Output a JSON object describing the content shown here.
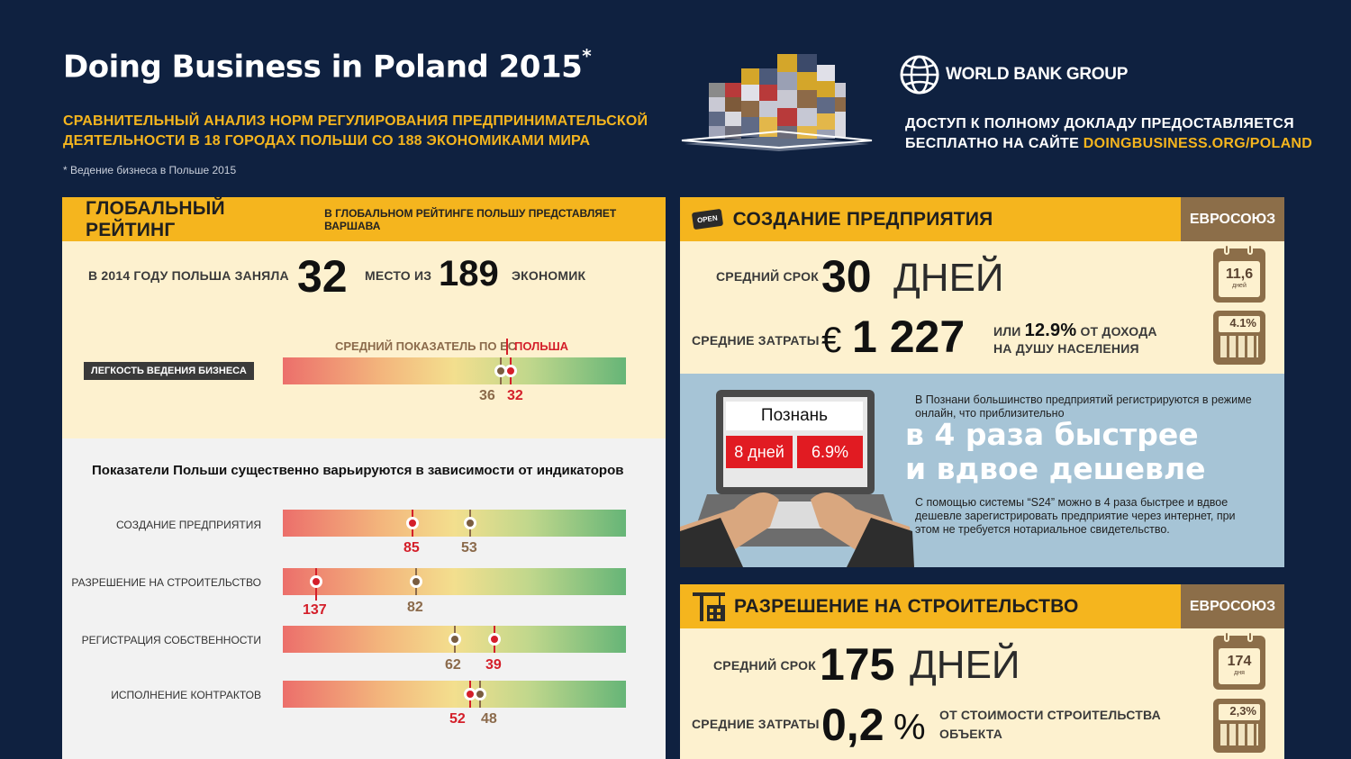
{
  "header": {
    "title": "Doing Business in Poland 2015",
    "title_mark": "*",
    "subtitle_line1": "СРАВНИТЕЛЬНЫЙ АНАЛИЗ НОРМ РЕГУЛИРОВАНИЯ ПРЕДПРИНИМАТЕЛЬСКОЙ",
    "subtitle_line2": "ДЕЯТЕЛЬНОСТИ В 18 ГОРОДАХ ПОЛЬШИ СО 188 ЭКОНОМИКАМИ МИРА",
    "footnote": "* Ведение бизнеса в Польше 2015",
    "brand": "WORLD BANK GROUP",
    "access_line1": "ДОСТУП К ПОЛНОМУ ДОКЛАДУ ПРЕДОСТАВЛЯЕТСЯ",
    "access_line2_prefix": "БЕСПЛАТНО НА САЙТЕ ",
    "access_link": "DOINGBUSINESS.ORG/POLAND"
  },
  "global": {
    "title": "ГЛОБАЛЬНЫЙ РЕЙТИНГ",
    "subtitle": "В ГЛОБАЛЬНОМ РЕЙТИНГЕ ПОЛЬШУ ПРЕДСТАВЛЯЕТ ВАРШАВА",
    "rank_prefix": "В 2014 ГОДУ ПОЛЬША ЗАНЯЛА",
    "rank": "32",
    "rank_mid": "МЕСТО ИЗ",
    "total": "189",
    "rank_suffix": "ЭКОНОМИК",
    "eu_avg_label": "СРЕДНИЙ ПОКАЗАТЕЛЬ ПО ЕС",
    "poland_label": "ПОЛЬША",
    "ease_label": "ЛЕГКОСТЬ ВЕДЕНИЯ БИЗНЕСА",
    "eu_value": "36",
    "poland_value": "32"
  },
  "indicators": {
    "heading": "Показатели Польши существенно варьируются в зависимости от индикаторов",
    "items": [
      {
        "label": "СОЗДАНИЕ ПРЕДПРИЯТИЯ",
        "poland": "85",
        "eu": "53"
      },
      {
        "label": "РАЗРЕШЕНИЕ НА СТРОИТЕЛЬСТВО",
        "poland": "137",
        "eu": "82"
      },
      {
        "label": "РЕГИСТРАЦИЯ СОБСТВЕННОСТИ",
        "poland": "39",
        "eu": "62"
      },
      {
        "label": "ИСПОЛНЕНИЕ КОНТРАКТОВ",
        "poland": "52",
        "eu": "48"
      }
    ]
  },
  "startup": {
    "title": "СОЗДАНИЕ ПРЕДПРИЯТИЯ",
    "open_sign": "OPEN",
    "eu_tag": "ЕВРОСОЮЗ",
    "time_label": "СРЕДНИЙ СРОК",
    "time_value": "30",
    "time_unit": "ДНЕЙ",
    "cost_label": "СРЕДНИЕ ЗАТРАТЫ",
    "cost_currency": "€",
    "cost_value": "1 227",
    "cost_or": "ИЛИ",
    "cost_pct": "12.9%",
    "cost_pct_text": "ОТ ДОХОДА",
    "cost_line2": "НА ДУШУ НАСЕЛЕНИЯ",
    "eu_days": "11,6",
    "eu_days_unit": "дней",
    "eu_pct": "4.1%"
  },
  "poznan": {
    "city": "Познань",
    "days": "8 дней",
    "pct": "6.9%",
    "intro": "В Познани большинство предприятий регистрируются в режиме онлайн, что приблизительно",
    "big1": "в 4 раза быстрее",
    "big2": "и вдвое дешевле",
    "note": "С помощью системы “S24” можно в 4 раза быстрее и вдвое дешевле зарегистрировать предприятие через интернет, при этом не требуется нотариальное свидетельство."
  },
  "permits": {
    "title": "РАЗРЕШЕНИЕ НА СТРОИТЕЛЬСТВО",
    "eu_tag": "ЕВРОСОЮЗ",
    "time_label": "СРЕДНИЙ СРОК",
    "time_value": "175",
    "time_unit": "ДНЕЙ",
    "cost_label": "СРЕДНИЕ ЗАТРАТЫ",
    "cost_value": "0,2",
    "cost_unit": "%",
    "cost_text1": "ОТ СТОИМОСТИ СТРОИТЕЛЬСТВА",
    "cost_text2": "ОБЪЕКТА",
    "eu_days": "174",
    "eu_days_unit": "дня",
    "eu_pct": "2,3%"
  },
  "colors": {
    "navy": "#0f2140",
    "gold": "#f5b51e",
    "brown": "#8c6e49",
    "red": "#d41f2a",
    "cream": "#fdf1cf",
    "blue": "#a6c4d6"
  }
}
